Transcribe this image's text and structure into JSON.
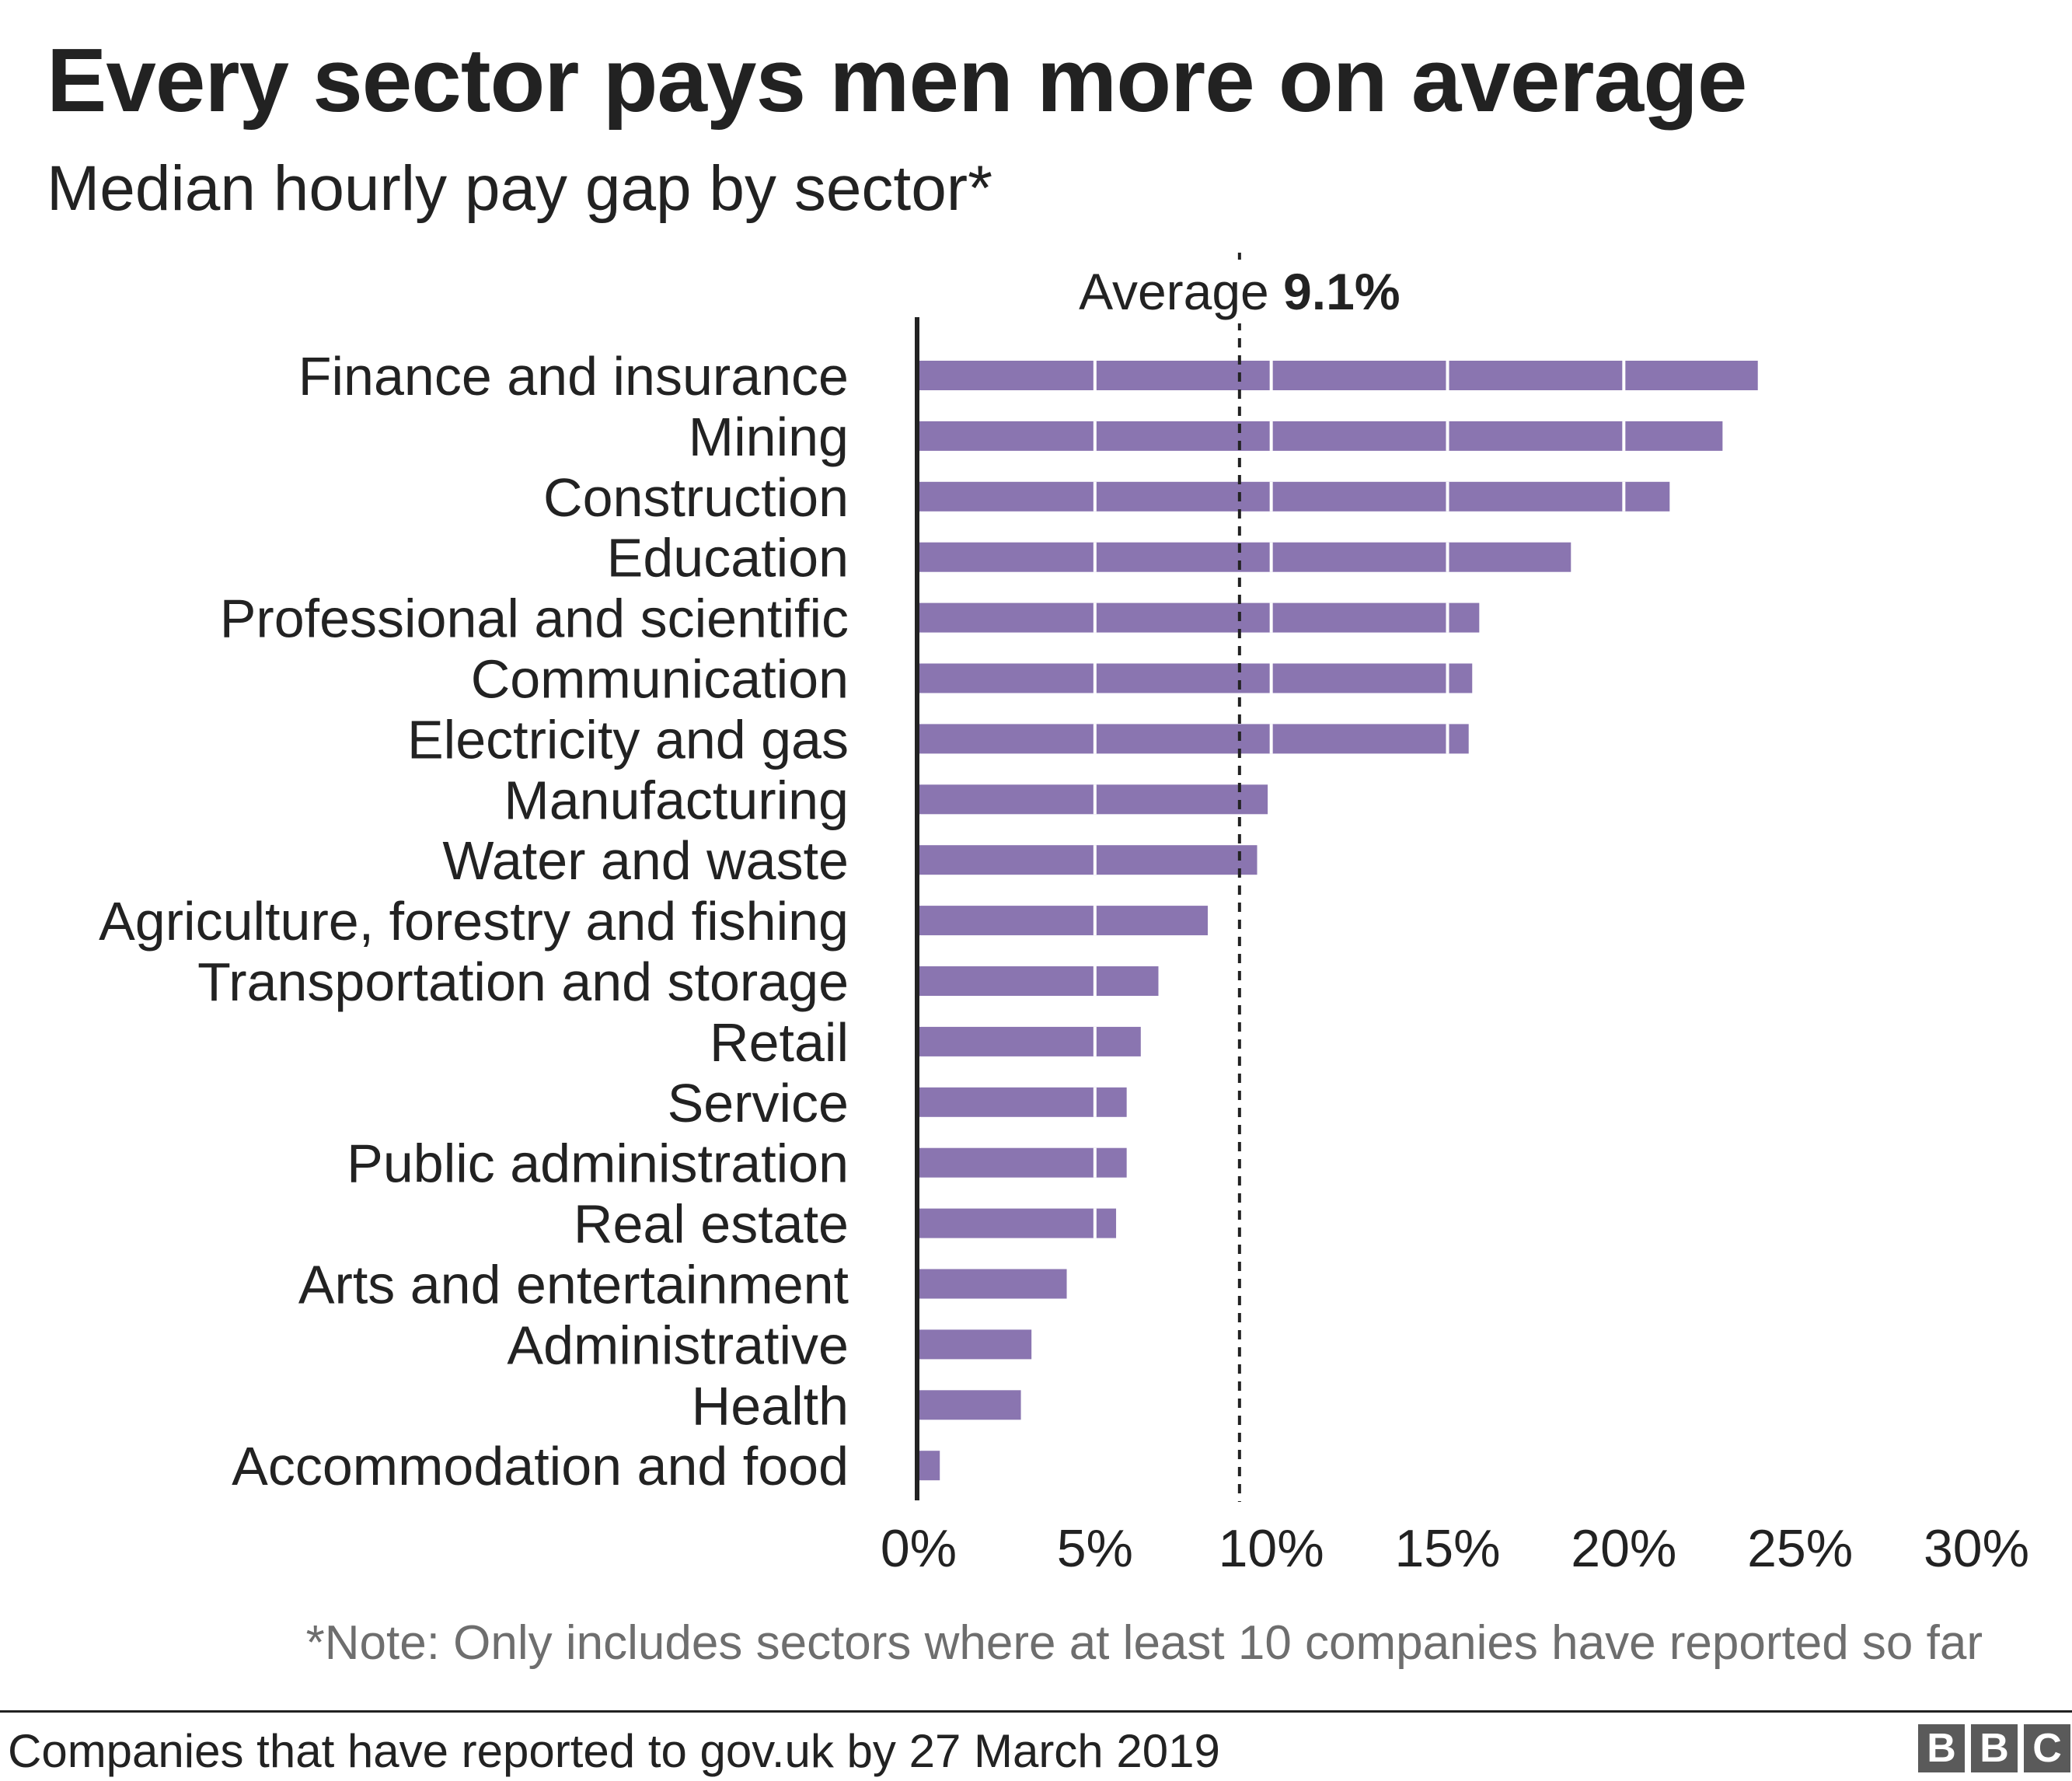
{
  "header": {
    "title": "Every sector pays men more on average",
    "subtitle": "Median hourly pay gap by sector*"
  },
  "chart_data": {
    "type": "bar",
    "orientation": "horizontal",
    "categories": [
      "Finance and insurance",
      "Mining",
      "Construction",
      "Education",
      "Professional and scientific",
      "Communication",
      "Electricity and gas",
      "Manufacturing",
      "Water and waste",
      "Agriculture, forestry and fishing",
      "Transportation and storage",
      "Retail",
      "Service",
      "Public administration",
      "Real estate",
      "Arts and entertainment",
      "Administrative",
      "Health",
      "Accommodation and food"
    ],
    "values": [
      23.8,
      22.8,
      21.3,
      18.5,
      15.9,
      15.7,
      15.6,
      9.9,
      9.6,
      8.2,
      6.8,
      6.3,
      5.9,
      5.9,
      5.6,
      4.2,
      3.2,
      2.9,
      0.6
    ],
    "xlim": [
      0,
      30
    ],
    "x_ticks": [
      0,
      5,
      10,
      15,
      20,
      25,
      30
    ],
    "x_tick_labels": [
      "0%",
      "5%",
      "10%",
      "15%",
      "20%",
      "25%",
      "30%"
    ],
    "grid": "vertical white lines every 5% inside bars",
    "bar_color": "#8a75b0",
    "reference_line": {
      "value": 9.1,
      "label_prefix": "Average",
      "label_value": "9.1%",
      "style": "dashed"
    }
  },
  "note": "*Note: Only includes sectors where at least 10 companies have reported so far",
  "footer": {
    "source": "Companies that have reported to gov.uk by 27 March 2019",
    "logo_letters": [
      "B",
      "B",
      "C"
    ]
  }
}
